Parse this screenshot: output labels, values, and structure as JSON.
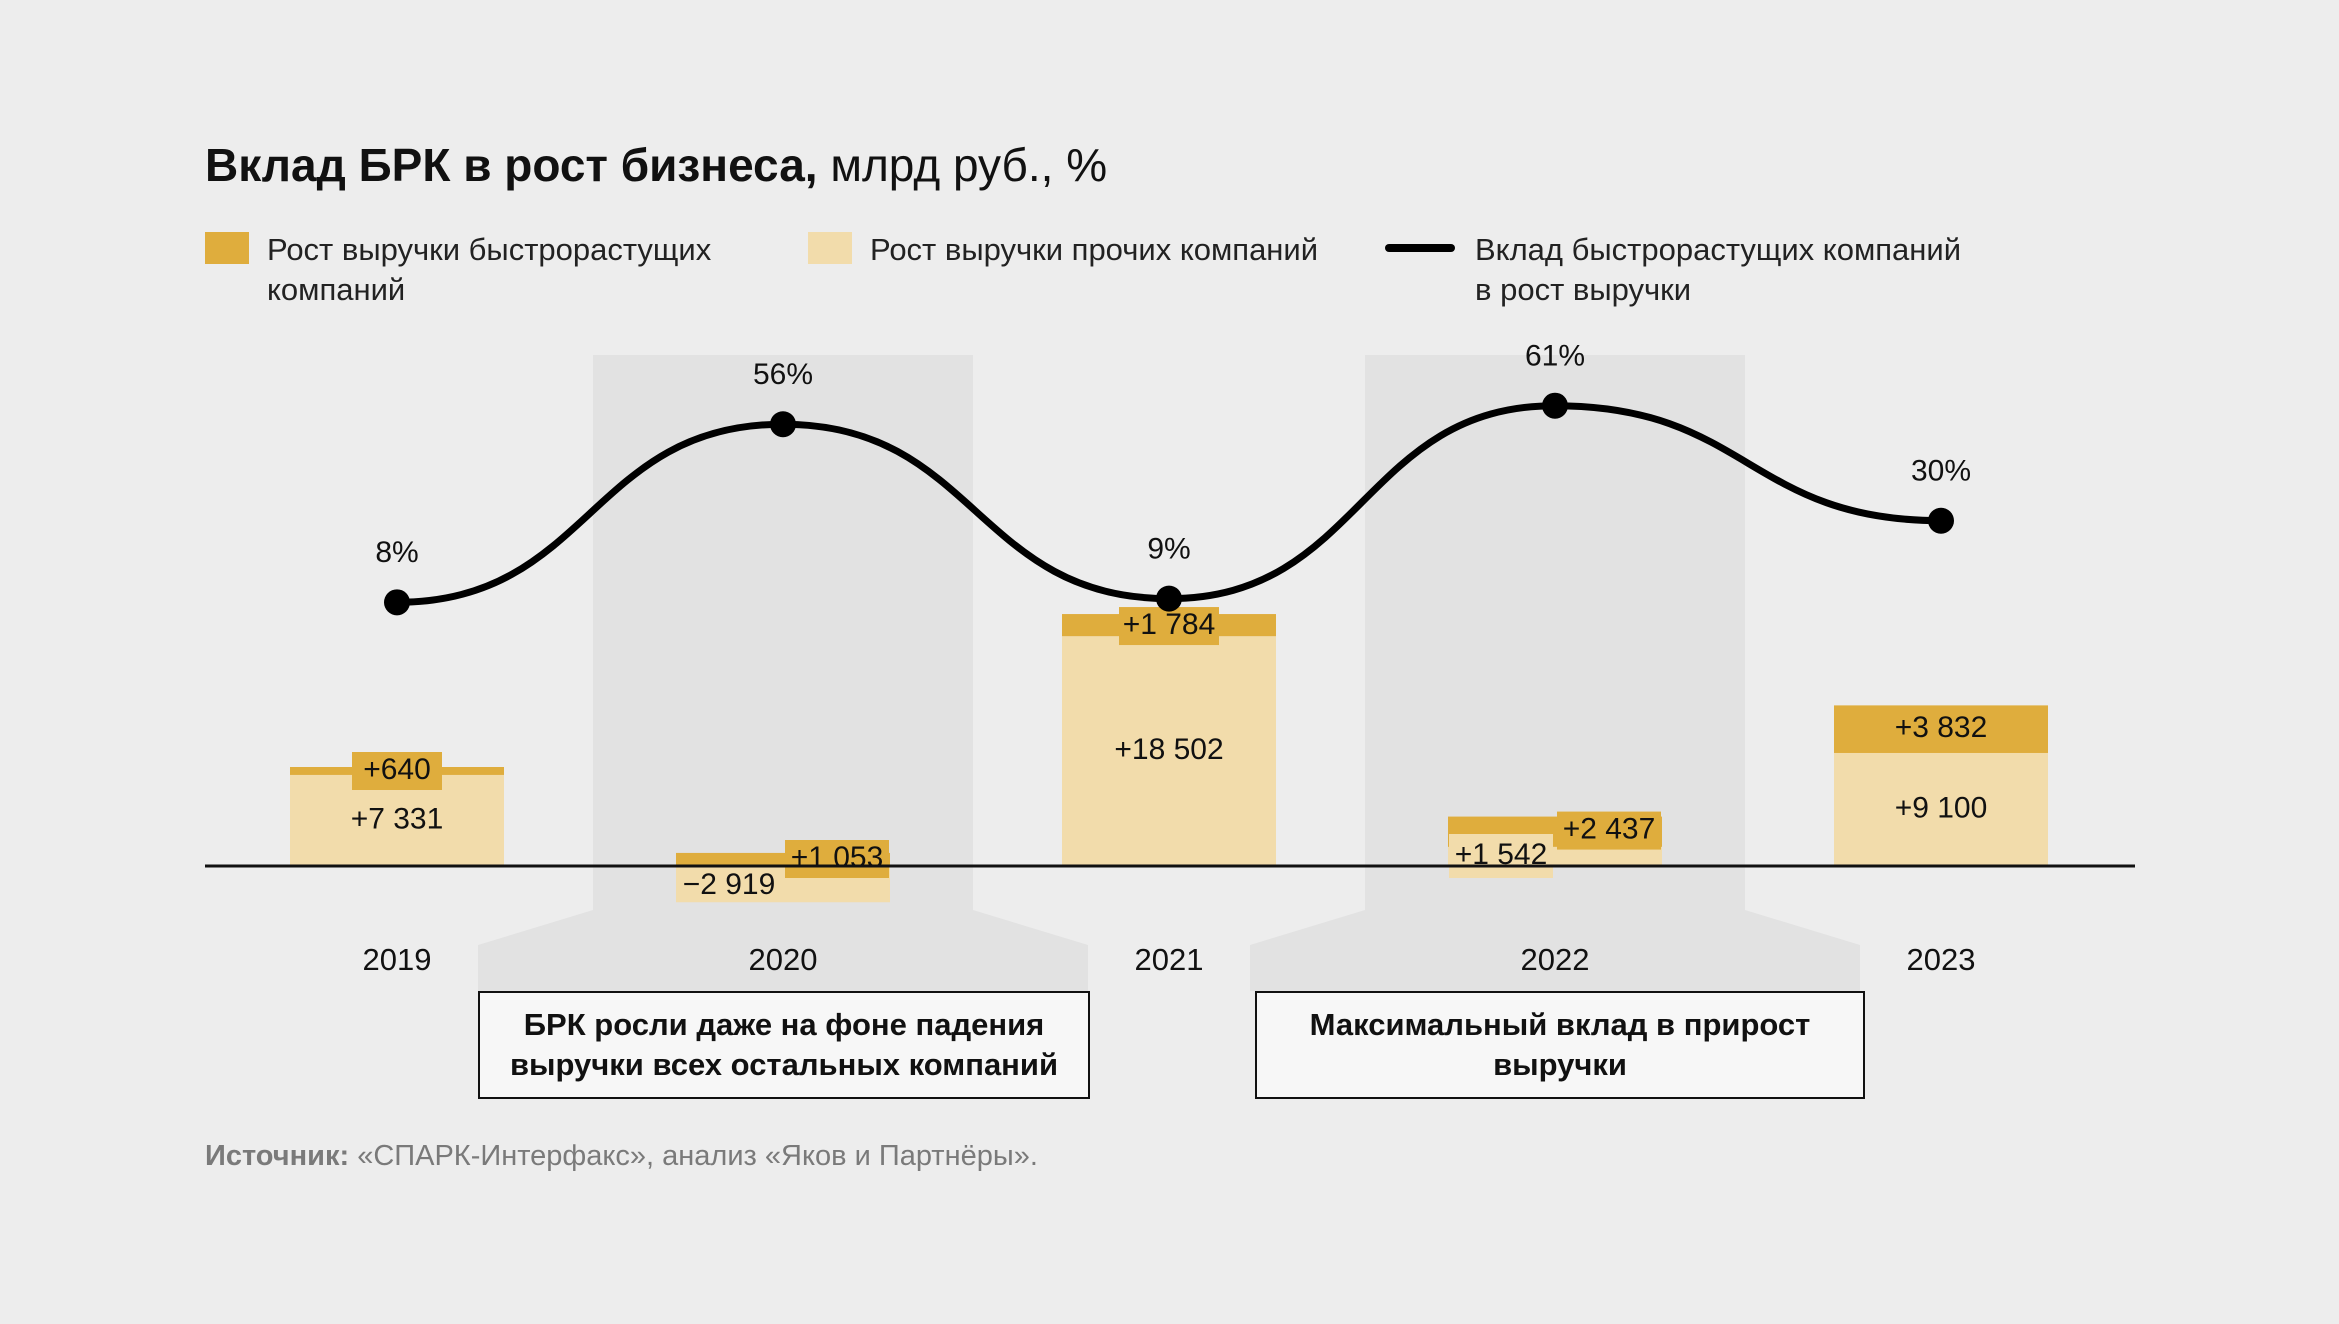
{
  "title": {
    "bold": "Вклад БРК в рост бизнеса,",
    "normal": " млрд руб., %"
  },
  "legend": {
    "fast": "Рост выручки быстрорастущих\nкомпаний",
    "other": "Рост выручки прочих компаний",
    "line": "Вклад быстрорастущих компаний\nв рост выручки"
  },
  "colors": {
    "fast": "#dfad3d",
    "other": "#f2dcab",
    "line": "#000000",
    "band": "#e2e2e2"
  },
  "chart_data": {
    "type": "bar",
    "categories": [
      "2019",
      "2020",
      "2021",
      "2022",
      "2023"
    ],
    "series": [
      {
        "name": "Рост выручки прочих компаний",
        "values": [
          7331,
          -2919,
          18502,
          1542,
          9100
        ],
        "labels": [
          "+7 331",
          "−2 919",
          "+18 502",
          "+1 542",
          "+9 100"
        ]
      },
      {
        "name": "Рост выручки быстрорастущих компаний",
        "values": [
          640,
          1053,
          1784,
          2437,
          3832
        ],
        "labels": [
          "+640",
          "+1 053",
          "+1 784",
          "+2 437",
          "+3 832"
        ]
      },
      {
        "name": "Вклад быстрорастущих компаний в рост выручки",
        "type": "line",
        "values": [
          8,
          56,
          9,
          61,
          30
        ],
        "labels": [
          "8%",
          "56%",
          "9%",
          "61%",
          "30%"
        ]
      }
    ]
  },
  "callouts": [
    {
      "text": "БРК росли даже на фоне падения\nвыручки всех остальных компаний"
    },
    {
      "text": "Максимальный вклад в прирост\nвыручки"
    }
  ],
  "source": {
    "label": "Источник:",
    "text": " «СПАРК-Интерфакс», анализ «Яков и Партнёры»."
  }
}
